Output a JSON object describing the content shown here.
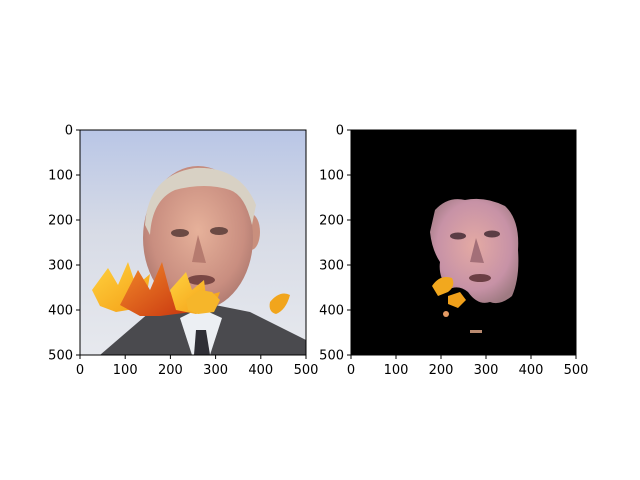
{
  "chart_data": [
    {
      "type": "image",
      "title": "",
      "xlabel": "",
      "ylabel": "",
      "xlim": [
        0,
        500
      ],
      "ylim": [
        500,
        0
      ],
      "xticks": [
        0,
        100,
        200,
        300,
        400,
        500
      ],
      "yticks": [
        0,
        100,
        200,
        300,
        400,
        500
      ],
      "content": "photo of man with autumn leaves overlay",
      "grid": false
    },
    {
      "type": "image",
      "title": "",
      "xlabel": "",
      "ylabel": "",
      "xlim": [
        0,
        500
      ],
      "ylim": [
        500,
        0
      ],
      "xticks": [
        0,
        100,
        200,
        300,
        400,
        500
      ],
      "yticks": [
        0,
        100,
        200,
        300,
        400,
        500
      ],
      "content": "segmented face mask on black background",
      "background": "#000000",
      "grid": false
    }
  ]
}
